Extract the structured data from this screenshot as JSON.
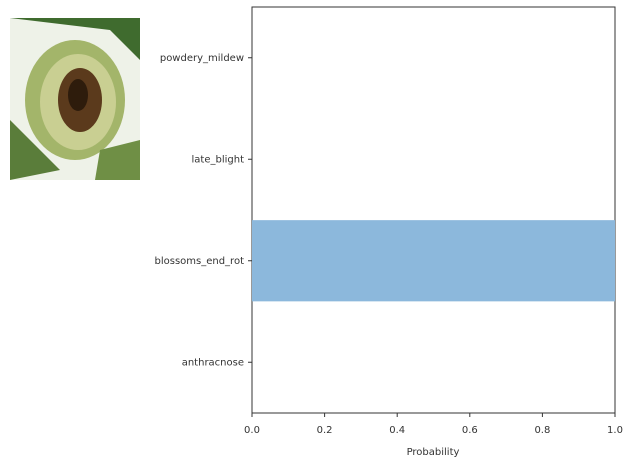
{
  "chart_data": {
    "type": "barh",
    "categories": [
      "powdery_mildew",
      "late_blight",
      "blossoms_end_rot",
      "anthracnose"
    ],
    "values": [
      0,
      0,
      1,
      0
    ],
    "color": "#8cb8dc",
    "xlabel": "Probability",
    "xlim": [
      0,
      1
    ],
    "xticks": [
      {
        "value": 0,
        "label": "0.0"
      },
      {
        "value": 0.2,
        "label": "0.2"
      },
      {
        "value": 0.4,
        "label": "0.4"
      },
      {
        "value": 0.6,
        "label": "0.6"
      },
      {
        "value": 0.8,
        "label": "0.8"
      },
      {
        "value": 1,
        "label": "1.0"
      }
    ]
  }
}
